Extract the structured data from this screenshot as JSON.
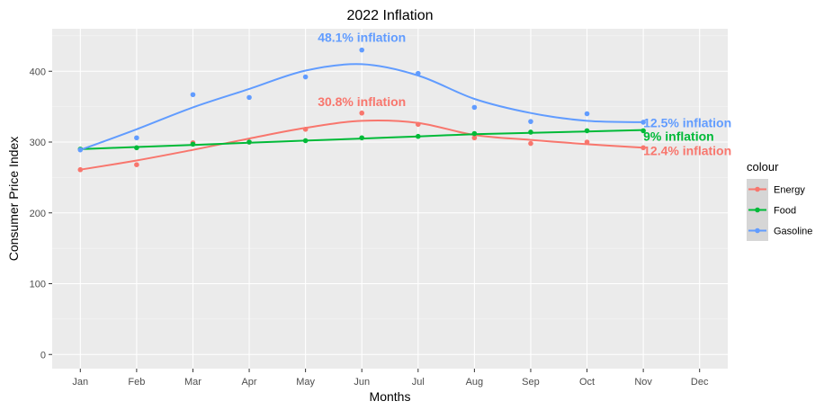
{
  "chart_data": {
    "type": "line",
    "title": "2022 Inflation",
    "xlabel": "Months",
    "ylabel": "Consumer Price Index",
    "categories": [
      "Jan",
      "Feb",
      "Mar",
      "Apr",
      "May",
      "Jun",
      "Jul",
      "Aug",
      "Sep",
      "Oct",
      "Nov",
      "Dec"
    ],
    "ylim": [
      -20,
      460
    ],
    "yticks": [
      0,
      100,
      200,
      300,
      400
    ],
    "grid": true,
    "background": "#ebebeb",
    "legend": {
      "title": "colour",
      "position": "right"
    },
    "series": [
      {
        "name": "Energy",
        "color": "#f8766d",
        "points": [
          261,
          268,
          299,
          300,
          318,
          341,
          325,
          306,
          298,
          300,
          292
        ],
        "trend": [
          261,
          274,
          289,
          305,
          320,
          330,
          327,
          310,
          303,
          297,
          292
        ]
      },
      {
        "name": "Food",
        "color": "#00ba38",
        "points": [
          290,
          292,
          297,
          300,
          302,
          306,
          308,
          312,
          314,
          316,
          316
        ],
        "trend": [
          290,
          293,
          296,
          299,
          302,
          305,
          308,
          311,
          313,
          315,
          317
        ]
      },
      {
        "name": "Gasoline",
        "color": "#619cff",
        "points": [
          289,
          306,
          367,
          363,
          392,
          430,
          397,
          349,
          329,
          340,
          328
        ],
        "trend": [
          289,
          318,
          349,
          375,
          401,
          410,
          394,
          361,
          341,
          330,
          328
        ]
      }
    ],
    "annotations": [
      {
        "text": "48.1% inflation",
        "x": "Jun",
        "y": 448,
        "color": "#619cff",
        "anchor": "middle"
      },
      {
        "text": "30.8% inflation",
        "x": "Jun",
        "y": 357,
        "color": "#f8766d",
        "anchor": "middle"
      },
      {
        "text": "12.5% inflation",
        "x": "Nov",
        "y": 327,
        "color": "#619cff",
        "anchor": "start"
      },
      {
        "text": "9% inflation",
        "x": "Nov",
        "y": 308,
        "color": "#00ba38",
        "anchor": "start"
      },
      {
        "text": "12.4% inflation",
        "x": "Nov",
        "y": 288,
        "color": "#f8766d",
        "anchor": "start"
      }
    ]
  }
}
